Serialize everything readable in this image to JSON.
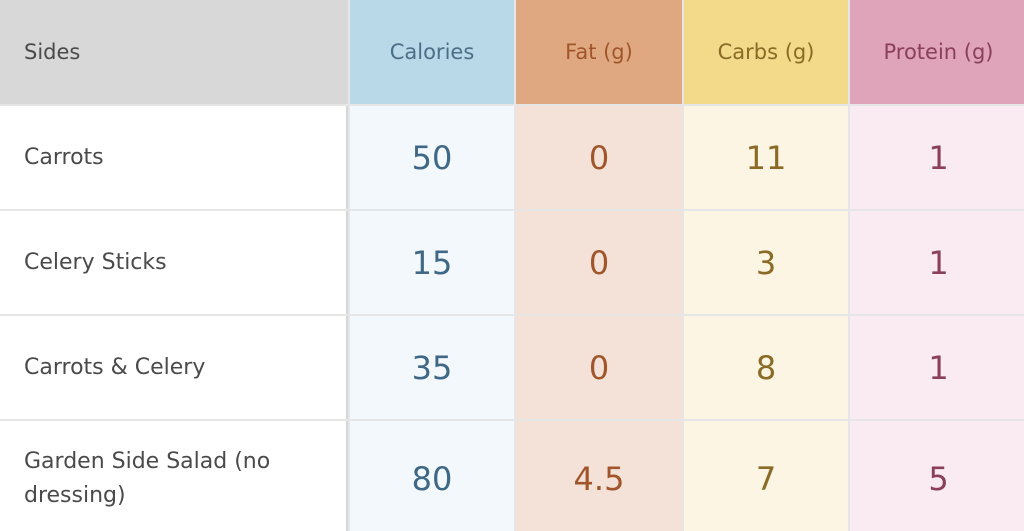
{
  "headers": {
    "sides": "Sides",
    "calories": "Calories",
    "fat": "Fat (g)",
    "carbs": "Carbs (g)",
    "protein": "Protein (g)"
  },
  "rows": [
    {
      "side": "Carrots",
      "calories": "50",
      "fat": "0",
      "carbs": "11",
      "protein": "1"
    },
    {
      "side": "Celery Sticks",
      "calories": "15",
      "fat": "0",
      "carbs": "3",
      "protein": "1"
    },
    {
      "side": "Carrots & Celery",
      "calories": "35",
      "fat": "0",
      "carbs": "8",
      "protein": "1"
    },
    {
      "side": "Garden Side Salad (no dressing)",
      "calories": "80",
      "fat": "4.5",
      "carbs": "7",
      "protein": "5"
    }
  ],
  "colors": {
    "calories_header": "#b9d8e8",
    "fat_header": "#e0a881",
    "carbs_header": "#f3d98a",
    "protein_header": "#dfa3ba"
  }
}
